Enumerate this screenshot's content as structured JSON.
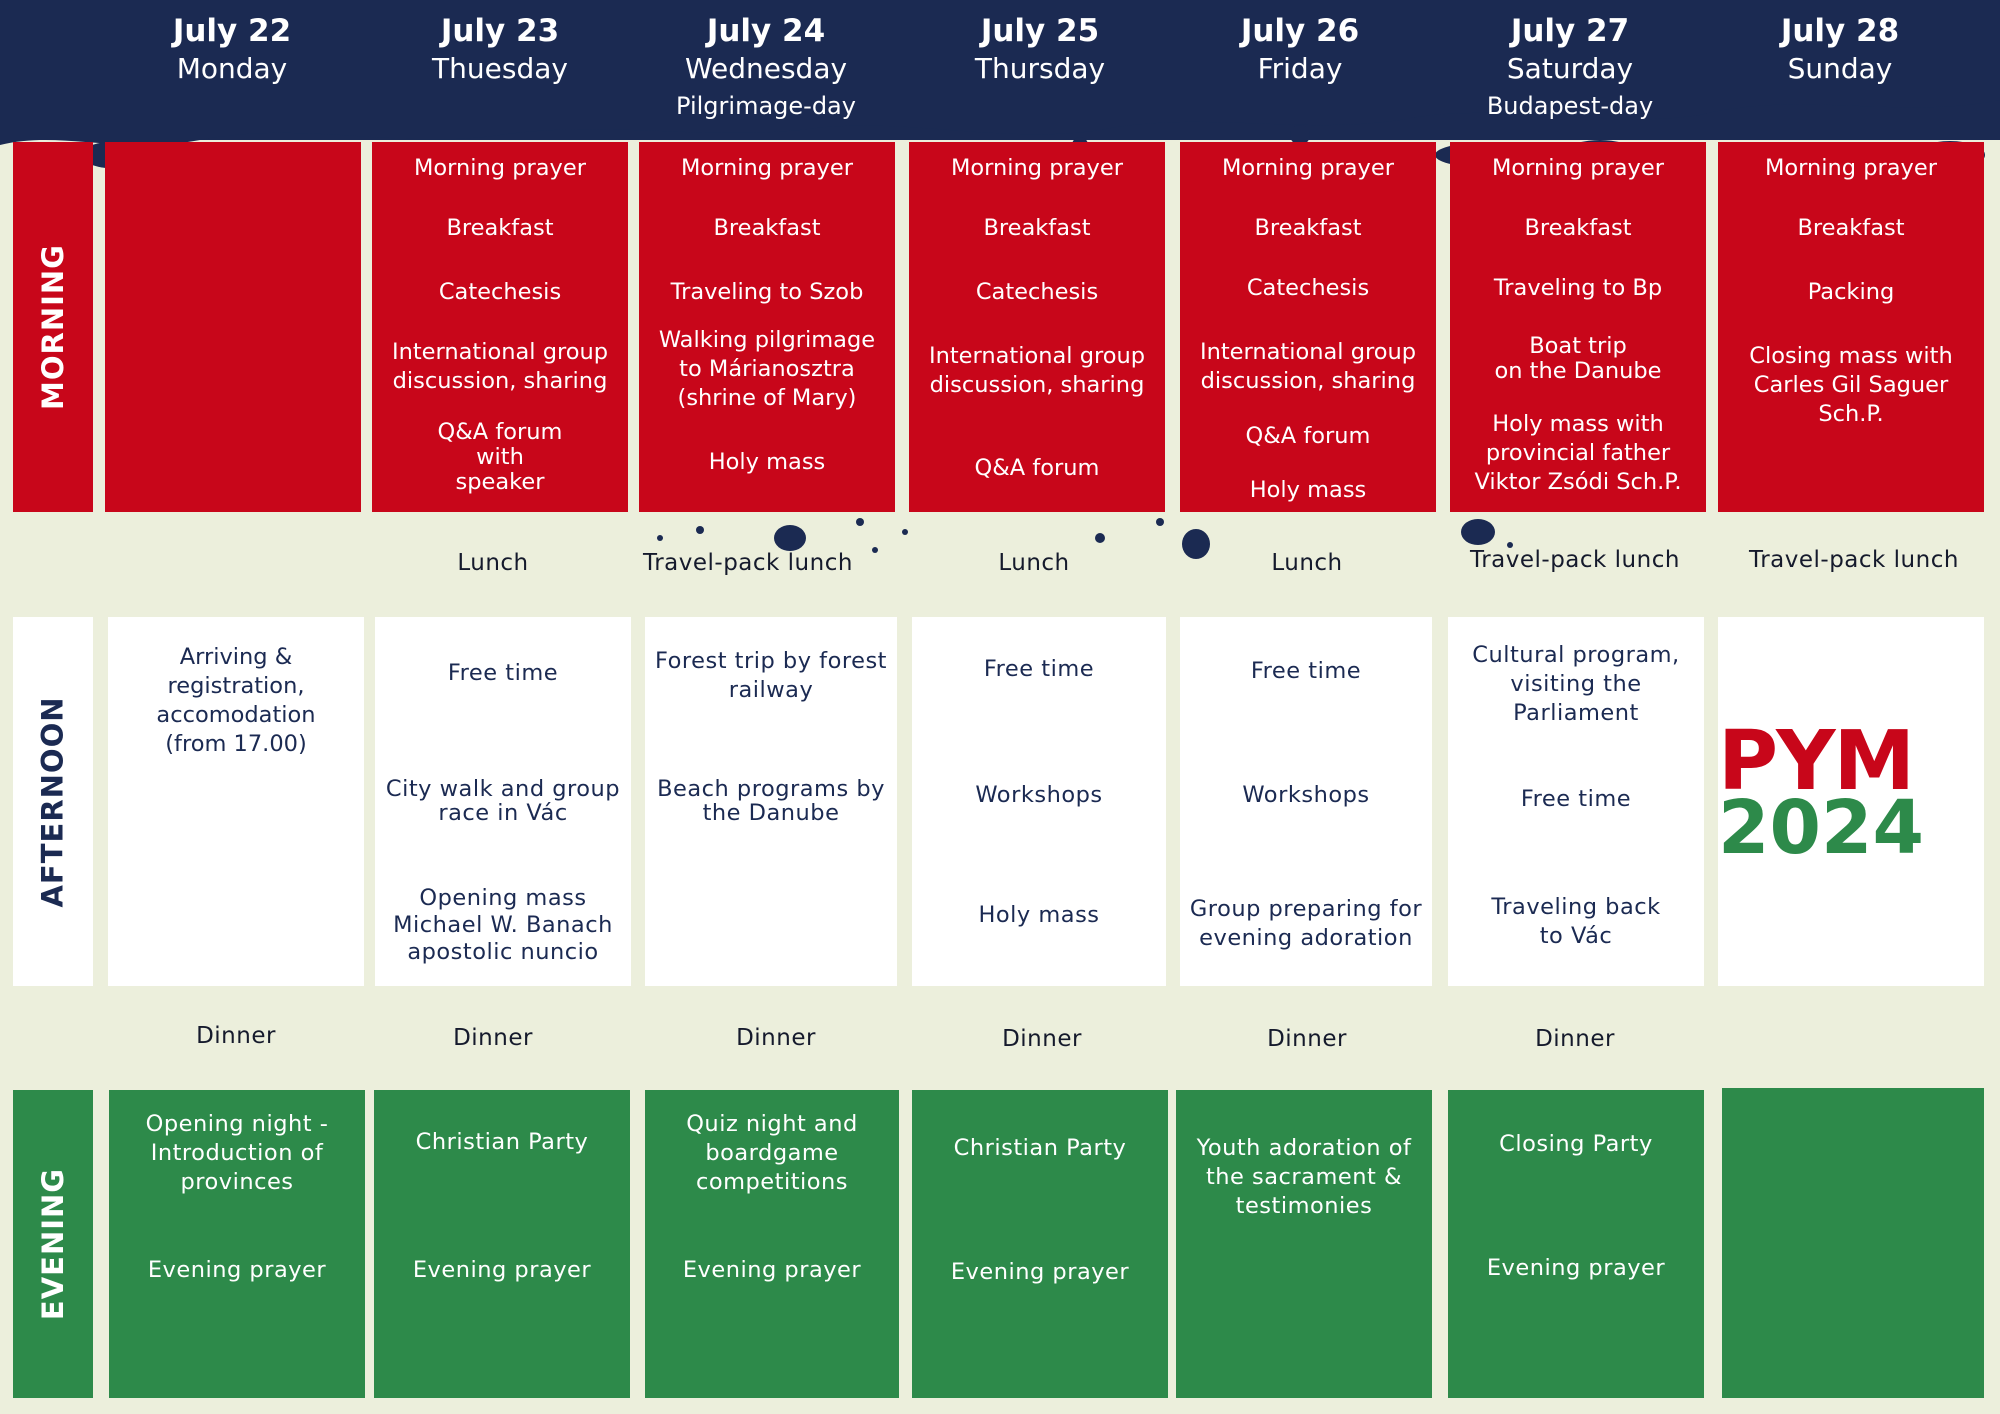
{
  "days": [
    {
      "date": "July 22",
      "name": "Monday",
      "sub": ""
    },
    {
      "date": "July 23",
      "name": "Thuesday",
      "sub": ""
    },
    {
      "date": "July 24",
      "name": "Wednesday",
      "sub": "Pilgrimage-day"
    },
    {
      "date": "July 25",
      "name": "Thursday",
      "sub": ""
    },
    {
      "date": "July 26",
      "name": "Friday",
      "sub": ""
    },
    {
      "date": "July 27",
      "name": "Saturday",
      "sub": "Budapest-day"
    },
    {
      "date": "July 28",
      "name": "Sunday",
      "sub": ""
    }
  ],
  "labels": {
    "morning": "MORNING",
    "afternoon": "AFTERNOON",
    "evening": "EVENING"
  },
  "morning": [
    [],
    [
      "Morning prayer",
      "Breakfast",
      "Catechesis",
      "International group\ndiscussion, sharing",
      "Q&A forum\nwith\nspeaker"
    ],
    [
      "Morning prayer",
      "Breakfast",
      "Traveling to Szob",
      "Walking pilgrimage\nto Márianosztra\n(shrine of Mary)",
      "Holy mass"
    ],
    [
      "Morning prayer",
      "Breakfast",
      "Catechesis",
      "International group\ndiscussion, sharing",
      "Q&A forum"
    ],
    [
      "Morning prayer",
      "Breakfast",
      "Catechesis",
      "International group\ndiscussion, sharing",
      "Q&A forum",
      "Holy mass"
    ],
    [
      "Morning prayer",
      "Breakfast",
      "Traveling to Bp",
      "Boat trip\non the Danube",
      "Holy mass with\nprovincial father\nViktor Zsódi Sch.P."
    ],
    [
      "Morning prayer",
      "Breakfast",
      "Packing",
      "Closing mass with\nCarles Gil Saguer Sch.P."
    ]
  ],
  "lunch": [
    "",
    "Lunch",
    "Travel-pack lunch",
    "Lunch",
    "Lunch",
    "Travel-pack lunch",
    "Travel-pack lunch"
  ],
  "afternoon": [
    [
      "Arriving & registration,\naccomodation\n(from 17.00)"
    ],
    [
      "Free time",
      "City walk and group\nrace in Vác",
      "Opening mass\nMichael W. Banach\napostolic nuncio"
    ],
    [
      "Forest trip by forest\nrailway",
      "Beach programs by\nthe Danube"
    ],
    [
      "Free time",
      "Workshops",
      "Holy mass"
    ],
    [
      "Free time",
      "Workshops",
      "Group preparing for\nevening adoration"
    ],
    [
      "Cultural program,\nvisiting the\nParliament",
      "Free time",
      "Traveling back\nto Vác"
    ],
    []
  ],
  "dinner": [
    "Dinner",
    "Dinner",
    "Dinner",
    "Dinner",
    "Dinner",
    "Dinner",
    ""
  ],
  "evening": [
    [
      "Opening night -\nIntroduction of\nprovinces",
      "Evening prayer"
    ],
    [
      "Christian Party",
      "Evening prayer"
    ],
    [
      "Quiz night and\nboardgame\ncompetitions",
      "Evening prayer"
    ],
    [
      "Christian Party",
      "Evening prayer"
    ],
    [
      "Youth adoration of\nthe sacrament &\ntestimonies"
    ],
    [
      "Closing Party",
      "Evening prayer"
    ],
    []
  ],
  "logo": {
    "line1": "PYM",
    "line2": "2024"
  },
  "colors": {
    "navy": "#1b2a52",
    "red": "#c8061a",
    "green": "#2d8a4a",
    "cream": "#ecefdc"
  }
}
